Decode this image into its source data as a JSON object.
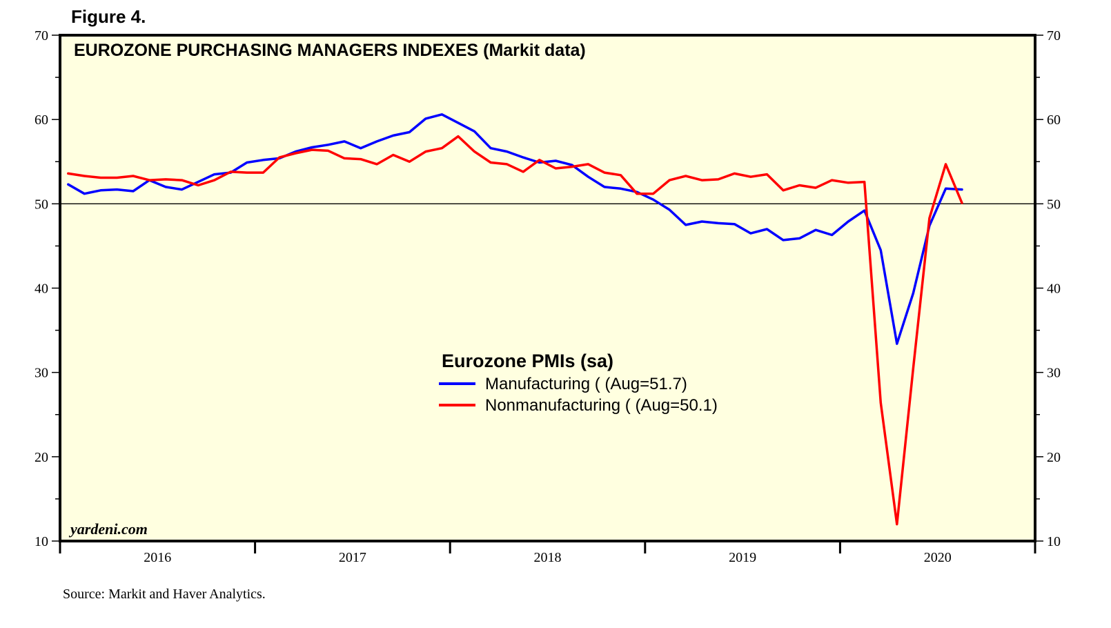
{
  "figure_label": "Figure 4.",
  "source_note": "Source: Markit and Haver Analytics.",
  "watermark": "yardeni.com",
  "chart_data": {
    "type": "line",
    "title": "EUROZONE PURCHASING MANAGERS INDEXES (Markit data)",
    "legend_title": "Eurozone PMIs (sa)",
    "xlabel": "",
    "ylabel": "",
    "ylim": [
      10,
      70
    ],
    "y_ticks": [
      10,
      20,
      30,
      40,
      50,
      60,
      70
    ],
    "x_year_labels": [
      "2016",
      "2017",
      "2018",
      "2019",
      "2020"
    ],
    "x_start": "2016-01",
    "x_end": "2020-12",
    "reference_line": 50,
    "background_color": "#ffffe0",
    "series": [
      {
        "name": "Manufacturing ( (Aug=51.7)",
        "color": "#0000ff",
        "start": "2016-01",
        "values": [
          52.3,
          51.2,
          51.6,
          51.7,
          51.5,
          52.8,
          52.0,
          51.7,
          52.6,
          53.5,
          53.7,
          54.9,
          55.2,
          55.4,
          56.2,
          56.7,
          57.0,
          57.4,
          56.6,
          57.4,
          58.1,
          58.5,
          60.1,
          60.6,
          59.6,
          58.6,
          56.6,
          56.2,
          55.5,
          54.9,
          55.1,
          54.6,
          53.2,
          52.0,
          51.8,
          51.4,
          50.5,
          49.3,
          47.5,
          47.9,
          47.7,
          47.6,
          46.5,
          47.0,
          45.7,
          45.9,
          46.9,
          46.3,
          47.9,
          49.2,
          44.5,
          33.4,
          39.4,
          47.4,
          51.8,
          51.7
        ]
      },
      {
        "name": "Nonmanufacturing ( (Aug=50.1)",
        "color": "#ff0000",
        "start": "2016-01",
        "values": [
          53.6,
          53.3,
          53.1,
          53.1,
          53.3,
          52.8,
          52.9,
          52.8,
          52.2,
          52.8,
          53.8,
          53.7,
          53.7,
          55.5,
          56.0,
          56.4,
          56.3,
          55.4,
          55.3,
          54.7,
          55.8,
          55.0,
          56.2,
          56.6,
          58.0,
          56.2,
          54.9,
          54.7,
          53.8,
          55.2,
          54.2,
          54.4,
          54.7,
          53.7,
          53.4,
          51.2,
          51.2,
          52.8,
          53.3,
          52.8,
          52.9,
          53.6,
          53.2,
          53.5,
          51.6,
          52.2,
          51.9,
          52.8,
          52.5,
          52.6,
          26.4,
          12.0,
          30.5,
          48.3,
          54.7,
          50.1
        ]
      }
    ]
  }
}
